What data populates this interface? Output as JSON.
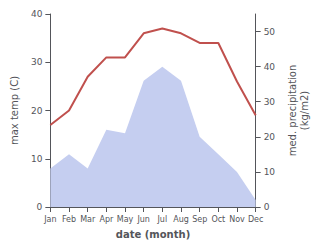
{
  "chart_data": {
    "type": "line",
    "xlabel": "date (month)",
    "ylabel": "max temp (C)",
    "y2label": "med. precipitation\n(kg/m2)",
    "categories": [
      "Jan",
      "Feb",
      "Mar",
      "Apr",
      "May",
      "Jun",
      "Jul",
      "Aug",
      "Sep",
      "Oct",
      "Nov",
      "Dec"
    ],
    "series": [
      {
        "type": "area",
        "axis": "y2",
        "color": "#c5cef0",
        "values": [
          11,
          15,
          11,
          22,
          21,
          36,
          40,
          36,
          20,
          15,
          10,
          2
        ]
      },
      {
        "type": "line",
        "color": "#c0504d",
        "values": [
          17,
          20,
          27,
          31,
          31,
          36,
          37,
          36,
          34,
          34,
          26,
          19
        ]
      }
    ],
    "ylim": [
      0,
      40
    ],
    "yticks": [
      0,
      10,
      20,
      30,
      40
    ],
    "y2lim": [
      0,
      55
    ],
    "y2ticks": [
      0,
      10,
      20,
      30,
      40,
      50
    ],
    "grid": false
  }
}
